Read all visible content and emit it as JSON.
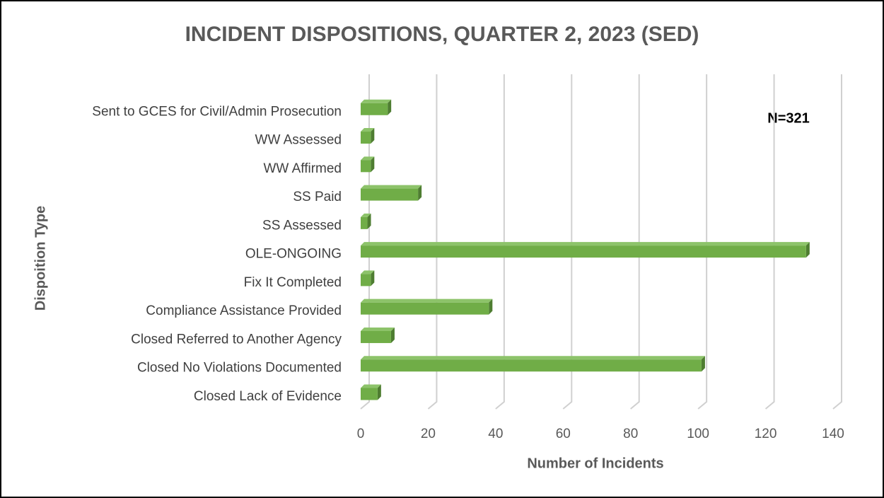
{
  "chart_data": {
    "type": "bar",
    "orientation": "horizontal",
    "title": "INCIDENT DISPOSITIONS, QUARTER 2, 2023 (SED)",
    "x_label": "Number of Incidents",
    "y_label": "Dispoition Type",
    "annotation": "N=321",
    "categories": [
      "Closed Lack of Evidence",
      "Closed No Violations Documented",
      "Closed Referred to Another Agency",
      "Compliance Assistance Provided",
      "Fix It Completed",
      "OLE-ONGOING",
      "SS Assessed",
      "SS Paid",
      "WW Affirmed",
      "WW Assessed",
      "Sent to GCES for Civil/Admin Prosecution"
    ],
    "values": [
      5,
      101,
      9,
      38,
      3,
      132,
      2,
      17,
      3,
      3,
      8
    ],
    "color": "#70ad47",
    "xlim": [
      0,
      140
    ],
    "xticks": [
      0,
      20,
      40,
      60,
      80,
      100,
      120,
      140
    ],
    "grid": true
  }
}
